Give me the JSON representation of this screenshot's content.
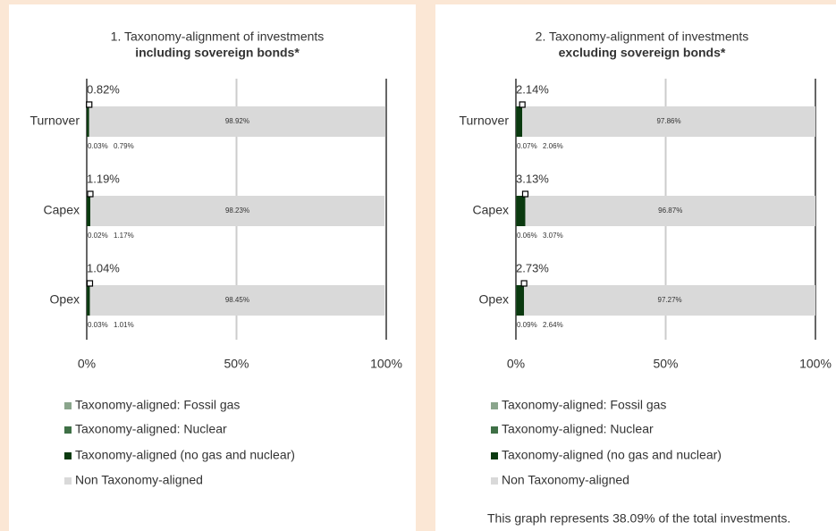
{
  "chart_data": [
    {
      "type": "stacked-bar-horizontal",
      "title": "1. Taxonomy-alignment of investments",
      "subtitle": "including sovereign bonds*",
      "categories": [
        "Turnover",
        "Capex",
        "Opex"
      ],
      "series": [
        {
          "name": "Taxonomy-aligned: Fossil gas",
          "color": "#8aa58c",
          "values": [
            null,
            null,
            null
          ]
        },
        {
          "name": "Taxonomy-aligned: Nuclear",
          "color": "#3f7046",
          "values": [
            0.03,
            0.02,
            0.03
          ],
          "value_labels": [
            "0.03%",
            "0.02%",
            "0.03%"
          ]
        },
        {
          "name": "Taxonomy-aligned (no gas and nuclear)",
          "color": "#0b3a10",
          "values": [
            0.79,
            1.17,
            1.01
          ],
          "value_labels": [
            "0.79%",
            "1.17%",
            "1.01%"
          ]
        },
        {
          "name": "Non Taxonomy-aligned",
          "color": "#d9d9d9",
          "values": [
            98.92,
            98.23,
            98.45
          ],
          "value_labels": [
            "98.92%",
            "98.23%",
            "98.45%"
          ]
        }
      ],
      "totals": [
        0.82,
        1.19,
        1.04
      ],
      "total_labels": [
        "0.82%",
        "1.19%",
        "1.04%"
      ],
      "xlim": [
        0,
        100
      ],
      "xticks": [
        {
          "value": 0,
          "label": "0%"
        },
        {
          "value": 50,
          "label": "50%"
        },
        {
          "value": 100,
          "label": "100%"
        }
      ]
    },
    {
      "type": "stacked-bar-horizontal",
      "title": "2. Taxonomy-alignment of investments",
      "subtitle": "excluding sovereign bonds*",
      "categories": [
        "Turnover",
        "Capex",
        "Opex"
      ],
      "series": [
        {
          "name": "Taxonomy-aligned: Fossil gas",
          "color": "#8aa58c",
          "values": [
            null,
            null,
            null
          ]
        },
        {
          "name": "Taxonomy-aligned: Nuclear",
          "color": "#3f7046",
          "values": [
            0.07,
            0.06,
            0.09
          ],
          "value_labels": [
            "0.07%",
            "0.06%",
            "0.09%"
          ]
        },
        {
          "name": "Taxonomy-aligned (no gas and nuclear)",
          "color": "#0b3a10",
          "values": [
            2.06,
            3.07,
            2.64
          ],
          "value_labels": [
            "2.06%",
            "3.07%",
            "2.64%"
          ]
        },
        {
          "name": "Non Taxonomy-aligned",
          "color": "#d9d9d9",
          "values": [
            97.86,
            96.87,
            97.27
          ],
          "value_labels": [
            "97.86%",
            "96.87%",
            "97.27%"
          ]
        }
      ],
      "totals": [
        2.14,
        3.13,
        2.73
      ],
      "total_labels": [
        "2.14%",
        "3.13%",
        "2.73%"
      ],
      "xlim": [
        0,
        100
      ],
      "xticks": [
        {
          "value": 0,
          "label": "0%"
        },
        {
          "value": 50,
          "label": "50%"
        },
        {
          "value": 100,
          "label": "100%"
        }
      ],
      "note": "This graph represents 38.09% of the total investments."
    }
  ]
}
